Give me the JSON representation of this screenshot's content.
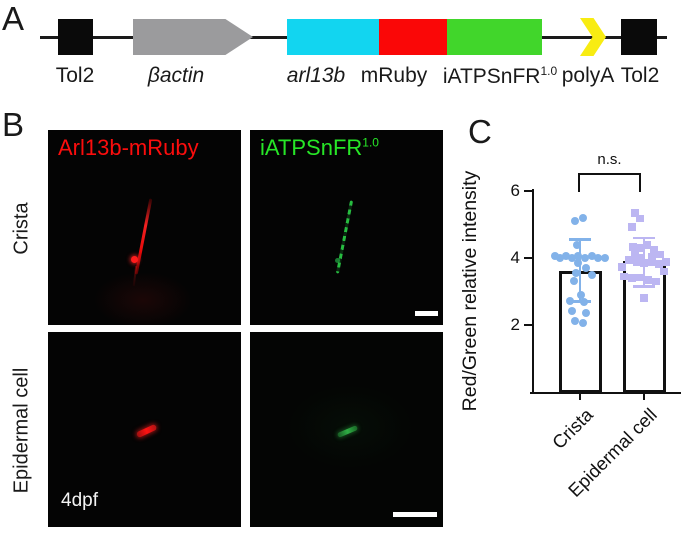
{
  "panels": {
    "a_letter": "A",
    "b_letter": "B",
    "c_letter": "C"
  },
  "panel_a": {
    "items": [
      {
        "id": "tol2-left",
        "label": "Tol2",
        "color": "#0a0a0a"
      },
      {
        "id": "bactin",
        "label": "βactin",
        "color": "#9b9b9d"
      },
      {
        "id": "arl13b",
        "label": "arl13b",
        "color": "#12d5f0"
      },
      {
        "id": "mruby",
        "label": "mRuby",
        "color": "#fa0707"
      },
      {
        "id": "iatpsnfr",
        "label": "iATPSnFR",
        "sup": "1.0",
        "color": "#41d62b"
      },
      {
        "id": "polya",
        "label": "polyA",
        "color": "#f8ec12"
      },
      {
        "id": "tol2-right",
        "label": "Tol2",
        "color": "#0a0a0a"
      }
    ]
  },
  "panel_b": {
    "row_labels": [
      "Crista",
      "Epidermal cell"
    ],
    "red_channel_label": "Arl13b-mRuby",
    "green_channel_label": "iATPSnFR",
    "green_channel_sup": "1.0",
    "stage_label": "4dpf",
    "colors": {
      "red_text": "#fb0d0d",
      "green_text": "#27e627"
    }
  },
  "chart_data": {
    "type": "bar",
    "title": "",
    "xlabel": "",
    "ylabel": "Red/Green relative intensity",
    "categories": [
      "Crista",
      "Epidermal cell"
    ],
    "bar_values": [
      3.6,
      3.9
    ],
    "error_bars": [
      {
        "mean": 3.6,
        "upper": 4.55,
        "lower": 2.7
      },
      {
        "mean": 3.9,
        "upper": 4.6,
        "lower": 3.15
      }
    ],
    "yticks": [
      2,
      4,
      6
    ],
    "ylim": [
      0,
      6.3
    ],
    "grid": false,
    "legend": "none",
    "significance": "n.s.",
    "series": [
      {
        "name": "Crista",
        "marker": "circle",
        "color": "#82b2e9",
        "points": [
          {
            "dx": -5,
            "v": 5.1
          },
          {
            "dx": 3,
            "v": 5.2
          },
          {
            "dx": -3,
            "v": 4.4
          },
          {
            "dx": -25,
            "v": 4.05
          },
          {
            "dx": -20,
            "v": 4.0
          },
          {
            "dx": -14,
            "v": 4.05
          },
          {
            "dx": -8,
            "v": 4.0
          },
          {
            "dx": -2,
            "v": 4.05
          },
          {
            "dx": 5,
            "v": 4.0
          },
          {
            "dx": 12,
            "v": 4.05
          },
          {
            "dx": 18,
            "v": 4.0
          },
          {
            "dx": 25,
            "v": 4.0
          },
          {
            "dx": -2,
            "v": 3.85
          },
          {
            "dx": 6,
            "v": 3.7
          },
          {
            "dx": -4,
            "v": 3.55
          },
          {
            "dx": 12,
            "v": 3.5
          },
          {
            "dx": -6,
            "v": 3.3
          },
          {
            "dx": 1,
            "v": 2.9
          },
          {
            "dx": -10,
            "v": 2.72
          },
          {
            "dx": 4,
            "v": 2.68
          },
          {
            "dx": -8,
            "v": 2.42
          },
          {
            "dx": 6,
            "v": 2.35
          },
          {
            "dx": -5,
            "v": 2.12
          },
          {
            "dx": 3,
            "v": 2.05
          }
        ]
      },
      {
        "name": "Epidermal cell",
        "marker": "square",
        "color": "#bcb6f2",
        "points": [
          {
            "dx": -9,
            "v": 5.35
          },
          {
            "dx": -4,
            "v": 5.18
          },
          {
            "dx": -12,
            "v": 4.93
          },
          {
            "dx": -11,
            "v": 4.33
          },
          {
            "dx": -4,
            "v": 4.3
          },
          {
            "dx": 3,
            "v": 4.39
          },
          {
            "dx": 10,
            "v": 4.25
          },
          {
            "dx": -9,
            "v": 4.09
          },
          {
            "dx": -4,
            "v": 4.0
          },
          {
            "dx": 8,
            "v": 4.03
          },
          {
            "dx": 16,
            "v": 4.1
          },
          {
            "dx": -15,
            "v": 3.94
          },
          {
            "dx": -7,
            "v": 3.88
          },
          {
            "dx": 0,
            "v": 3.85
          },
          {
            "dx": 8,
            "v": 3.88
          },
          {
            "dx": 15,
            "v": 3.82
          },
          {
            "dx": 22,
            "v": 3.88
          },
          {
            "dx": -22,
            "v": 3.73
          },
          {
            "dx": -20,
            "v": 3.45
          },
          {
            "dx": -12,
            "v": 3.4
          },
          {
            "dx": -4,
            "v": 3.42
          },
          {
            "dx": 4,
            "v": 3.35
          },
          {
            "dx": 12,
            "v": 3.3
          },
          {
            "dx": 20,
            "v": 3.6
          },
          {
            "dx": 0,
            "v": 2.8
          }
        ]
      }
    ]
  }
}
